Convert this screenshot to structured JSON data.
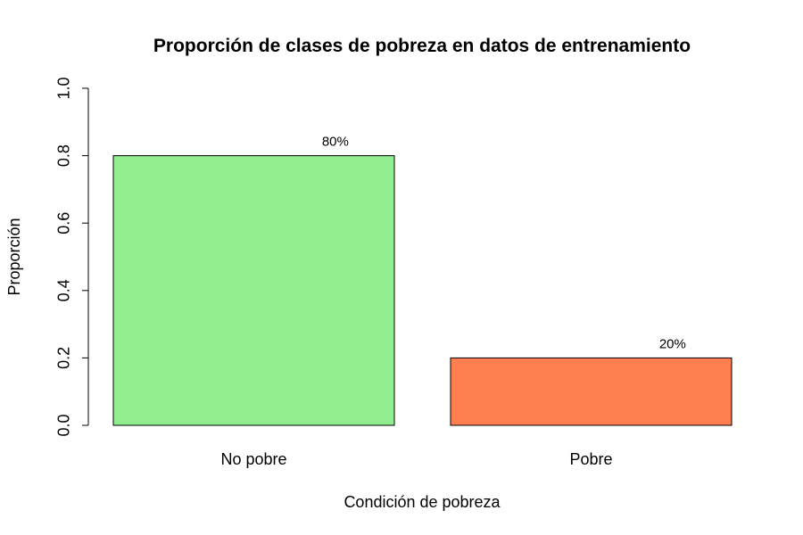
{
  "chart_data": {
    "type": "bar",
    "title": "Proporción de clases de pobreza en datos de entrenamiento",
    "xlabel": "Condición de pobreza",
    "ylabel": "Proporción",
    "categories": [
      "No pobre",
      "Pobre"
    ],
    "values": [
      0.8,
      0.2
    ],
    "data_labels": [
      "80%",
      "20%"
    ],
    "colors": [
      "#90ee90",
      "#ff7f50"
    ],
    "ylim": [
      0,
      1
    ],
    "yticks": [
      0,
      0.2,
      0.4,
      0.6,
      0.8,
      1
    ],
    "ytick_labels": [
      "0.0",
      "0.2",
      "0.4",
      "0.6",
      "0.8",
      "1.0"
    ],
    "grid": false,
    "legend": "none"
  }
}
